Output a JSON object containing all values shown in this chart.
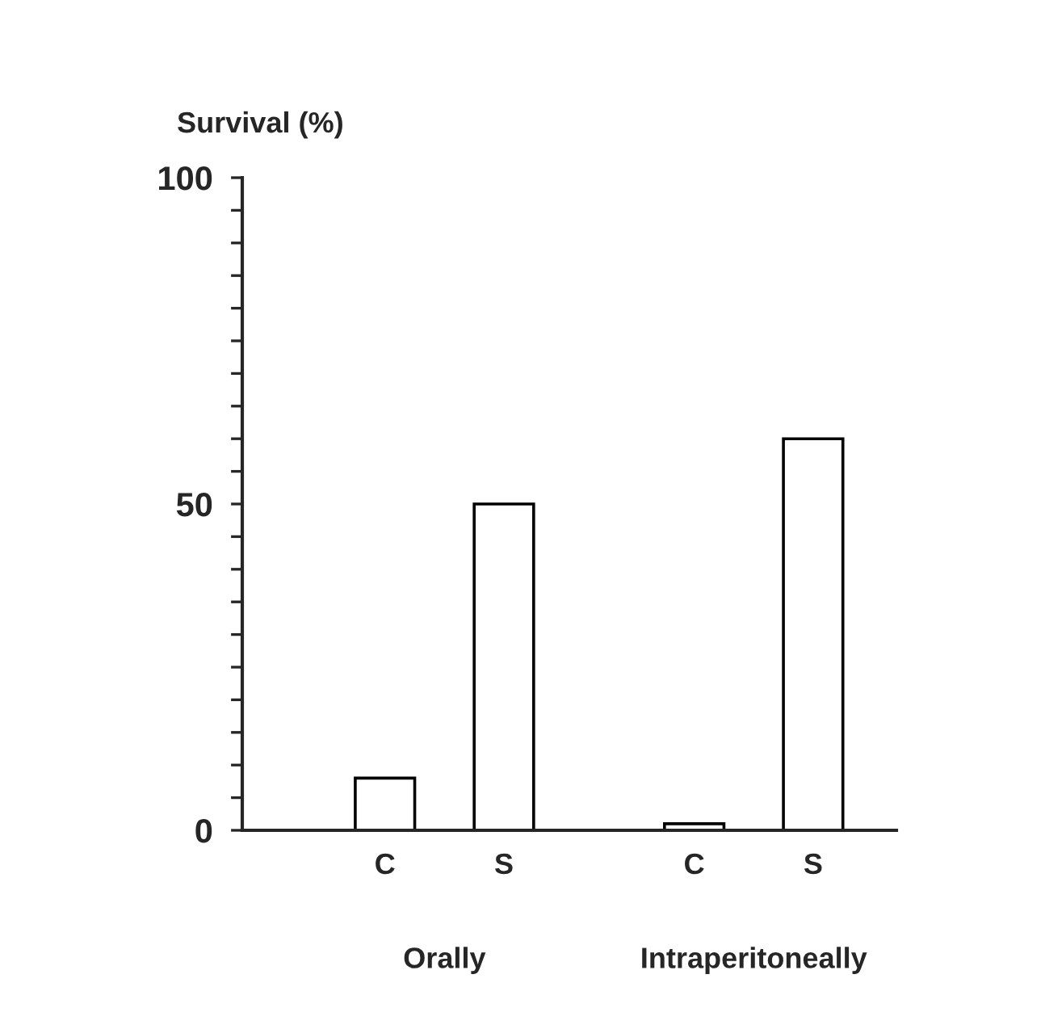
{
  "chart_data": {
    "type": "bar",
    "ylabel": "Survival (%)",
    "categories": [
      "C",
      "S",
      "C",
      "S"
    ],
    "values": [
      8,
      50,
      1,
      60
    ],
    "color": "#ffffff",
    "ylim": [
      0,
      100
    ],
    "yticks": [
      0,
      {
        "value": 5,
        "label": null
      },
      {
        "value": 10,
        "label": null
      },
      {
        "value": 15,
        "label": null
      },
      {
        "value": 20,
        "label": null
      },
      {
        "value": 25,
        "label": null
      },
      {
        "value": 30,
        "label": null
      },
      {
        "value": 35,
        "label": null
      },
      {
        "value": 40,
        "label": null
      },
      {
        "value": 45,
        "label": null
      },
      50,
      {
        "value": 55,
        "label": null
      },
      {
        "value": 60,
        "label": null
      },
      {
        "value": 65,
        "label": null
      },
      {
        "value": 70,
        "label": null
      },
      {
        "value": 75,
        "label": null
      },
      {
        "value": 80,
        "label": null
      },
      {
        "value": 85,
        "label": null
      },
      {
        "value": 90,
        "label": null
      },
      {
        "value": 95,
        "label": null
      },
      100
    ],
    "annotations": [
      "Orally",
      "Intraperitoneally"
    ],
    "grid": false,
    "legend": false
  }
}
